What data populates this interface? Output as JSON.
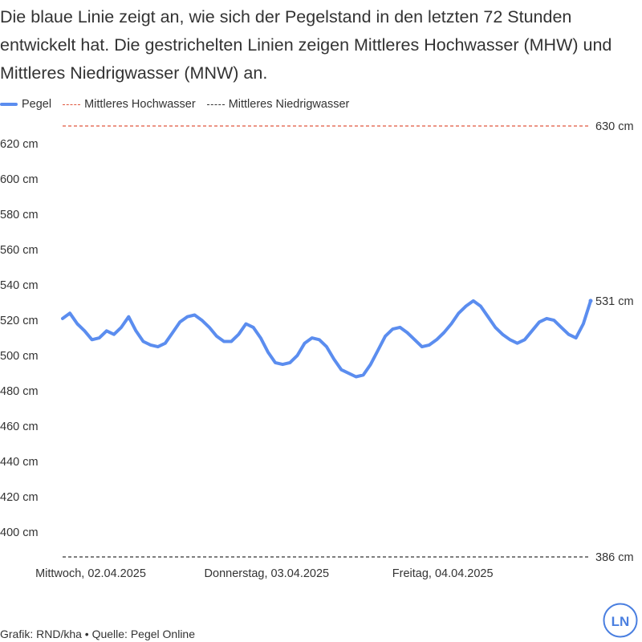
{
  "description": "Die blaue Linie zeigt an, wie sich der Pegelstand in den letzten 72 Stunden entwickelt hat. Die gestrichelten Linien zeigen Mittleres Hochwasser (MHW) und Mittleres Niedrigwasser (MNW) an.",
  "legend": {
    "pegel": "Pegel",
    "mhw": "Mittleres Hochwasser",
    "mnw": "Mittleres Niedrigwasser"
  },
  "footer": "Grafik: RND/kha • Quelle: Pegel Online",
  "logo_text": "LN",
  "colors": {
    "line": "#5b8def",
    "mhw": "#e0573d",
    "mnw": "#333333",
    "logo": "#4a7fe0"
  },
  "chart_data": {
    "type": "line",
    "title": "",
    "xlabel": "",
    "ylabel": "",
    "unit": "cm",
    "ylim": [
      386,
      630
    ],
    "xlim": [
      0,
      72
    ],
    "yticks": [
      400,
      420,
      440,
      460,
      480,
      500,
      520,
      540,
      560,
      580,
      600,
      620
    ],
    "ytick_labels": [
      "400 cm",
      "420 cm",
      "440 cm",
      "460 cm",
      "480 cm",
      "500 cm",
      "520 cm",
      "540 cm",
      "560 cm",
      "580 cm",
      "600 cm",
      "620 cm"
    ],
    "xticks": [
      {
        "hour": 0,
        "label": "Mittwoch, 02.04.2025"
      },
      {
        "hour": 24,
        "label": "Donnerstag, 03.04.2025"
      },
      {
        "hour": 48,
        "label": "Freitag, 04.04.2025"
      }
    ],
    "reference_lines": [
      {
        "name": "Mittleres Hochwasser",
        "value": 630,
        "label": "630 cm",
        "color": "#e0573d"
      },
      {
        "name": "Mittleres Niedrigwasser",
        "value": 386,
        "label": "386 cm",
        "color": "#333333"
      }
    ],
    "end_label": "531 cm",
    "series": [
      {
        "name": "Pegel",
        "color": "#5b8def",
        "x_unit": "hours",
        "x": [
          0,
          1,
          2,
          3,
          4,
          5,
          6,
          7,
          8,
          9,
          10,
          11,
          12,
          13,
          14,
          15,
          16,
          17,
          18,
          19,
          20,
          21,
          22,
          23,
          24,
          25,
          26,
          27,
          28,
          29,
          30,
          31,
          32,
          33,
          34,
          35,
          36,
          37,
          38,
          39,
          40,
          41,
          42,
          43,
          44,
          45,
          46,
          47,
          48,
          49,
          50,
          51,
          52,
          53,
          54,
          55,
          56,
          57,
          58,
          59,
          60,
          61,
          62,
          63,
          64,
          65,
          66,
          67,
          68,
          69,
          70,
          71,
          72
        ],
        "y": [
          521,
          524,
          518,
          514,
          509,
          510,
          514,
          512,
          516,
          522,
          514,
          508,
          506,
          505,
          507,
          513,
          519,
          522,
          523,
          520,
          516,
          511,
          508,
          508,
          512,
          518,
          516,
          510,
          502,
          496,
          495,
          496,
          500,
          507,
          510,
          509,
          505,
          498,
          492,
          490,
          488,
          489,
          495,
          503,
          511,
          515,
          516,
          513,
          509,
          505,
          506,
          509,
          513,
          518,
          524,
          528,
          531,
          528,
          522,
          516,
          512,
          509,
          507,
          509,
          514,
          519,
          521,
          520,
          516,
          512,
          510,
          518,
          531
        ]
      }
    ]
  }
}
